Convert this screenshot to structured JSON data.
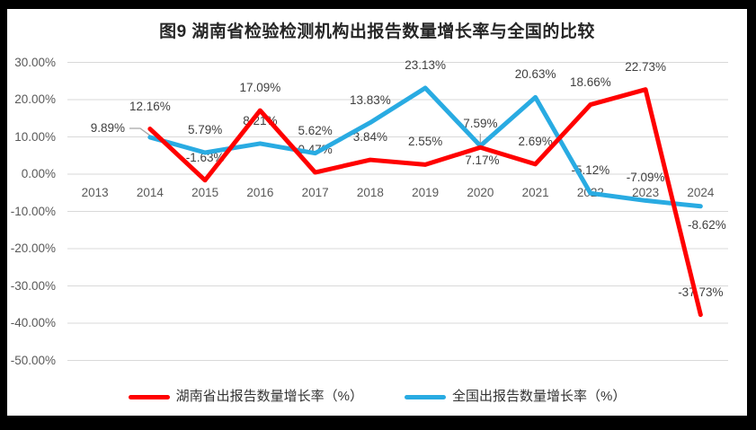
{
  "page": {
    "frame_color": "#000000",
    "canvas_color": "#FFFFFF"
  },
  "colors": {
    "red_series": "#FF0000",
    "blue_series": "#29ABE2",
    "gridline": "#D9D9D9",
    "axis_text": "#595959",
    "data_label_text": "#404040",
    "leader_line": "#A6A6A6",
    "title_text": "#262626"
  },
  "chart_data": {
    "type": "line",
    "title": "图9 湖南省检验检测机构出报告数量增长率与全国的比较",
    "categories": [
      "2013",
      "2014",
      "2015",
      "2016",
      "2017",
      "2018",
      "2019",
      "2020",
      "2021",
      "2022",
      "2023",
      "2024"
    ],
    "series": [
      {
        "name": "湖南省出报告数量增长率（%）",
        "color": "#FF0000",
        "values": [
          null,
          12.16,
          -1.63,
          17.09,
          0.47,
          3.84,
          2.55,
          7.17,
          2.69,
          18.66,
          22.73,
          -37.73
        ],
        "labels": [
          null,
          "12.16%",
          "-1.63%",
          "17.09%",
          "0.47%",
          "3.84%",
          "2.55%",
          "7.17%",
          "2.69%",
          "18.66%",
          "22.73%",
          "-37.73%"
        ]
      },
      {
        "name": "全国出报告数量增长率（%）",
        "color": "#29ABE2",
        "values": [
          null,
          9.89,
          5.79,
          8.21,
          5.62,
          13.83,
          23.13,
          7.59,
          20.63,
          -5.12,
          -7.09,
          -8.62
        ],
        "labels": [
          null,
          "9.89%",
          "5.79%",
          "8.21%",
          "5.62%",
          "13.83%",
          "23.13%",
          "7.59%",
          "20.63%",
          "-5.12%",
          "-7.09%",
          "-8.62%"
        ]
      }
    ],
    "y_axis": {
      "tick_labels": [
        "30.00%",
        "20.00%",
        "10.00%",
        "0.00%",
        "-10.00%",
        "-20.00%",
        "-30.00%",
        "-40.00%",
        "-50.00%"
      ],
      "tick_values": [
        30,
        20,
        10,
        0,
        -10,
        -20,
        -30,
        -40,
        -50
      ],
      "min": -50,
      "max": 30
    },
    "grid": true,
    "legend_position": "bottom"
  }
}
